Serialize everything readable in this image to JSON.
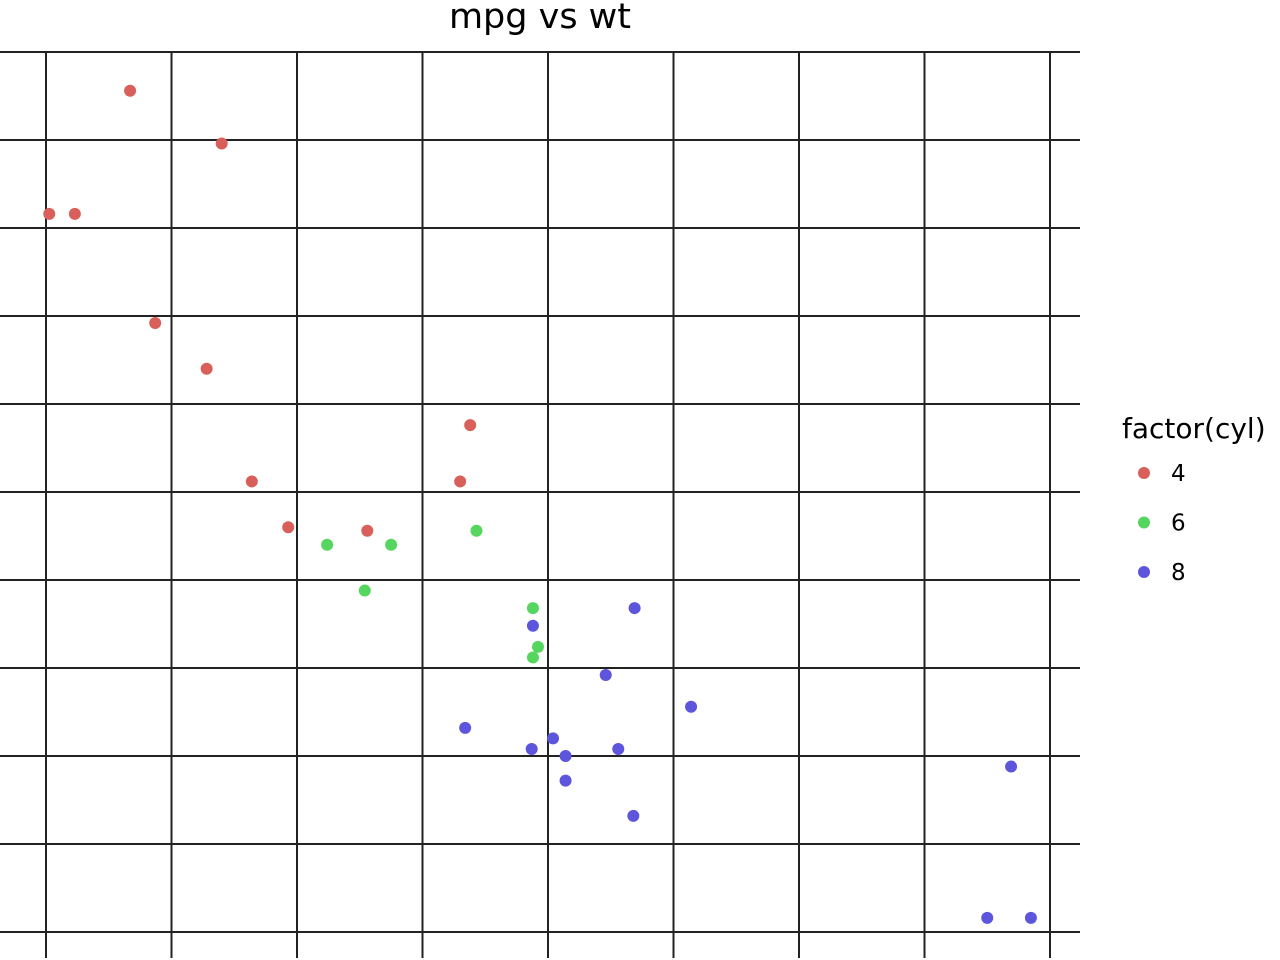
{
  "chart_data": {
    "type": "scatter",
    "title": "mpg vs wt",
    "xlabel": "",
    "ylabel": "",
    "xlim": [
      1.5,
      5.75
    ],
    "ylim": [
      9.5,
      35.0
    ],
    "x_gridlines": [
      1.5,
      2.0,
      2.5,
      3.0,
      3.5,
      4.0,
      4.5,
      5.0,
      5.5
    ],
    "y_gridlines": [
      10.0,
      12.5,
      15.0,
      17.5,
      20.0,
      22.5,
      25.0,
      27.5,
      30.0,
      32.5,
      35.0
    ],
    "grid": true,
    "legend": {
      "title": "factor(cyl)",
      "placement": "right",
      "entries": [
        {
          "label": "4",
          "color": "#d9605a"
        },
        {
          "label": "6",
          "color": "#55d65e"
        },
        {
          "label": "8",
          "color": "#5d55dc"
        }
      ]
    },
    "series": [
      {
        "name": "4",
        "color": "#d9605a",
        "points": [
          {
            "x": 2.32,
            "y": 22.8
          },
          {
            "x": 3.19,
            "y": 24.4
          },
          {
            "x": 3.15,
            "y": 22.8
          },
          {
            "x": 2.2,
            "y": 32.4
          },
          {
            "x": 1.615,
            "y": 30.4
          },
          {
            "x": 1.835,
            "y": 33.9
          },
          {
            "x": 2.465,
            "y": 21.5
          },
          {
            "x": 1.935,
            "y": 27.3
          },
          {
            "x": 2.14,
            "y": 26.0
          },
          {
            "x": 1.513,
            "y": 30.4
          },
          {
            "x": 2.78,
            "y": 21.4
          }
        ]
      },
      {
        "name": "6",
        "color": "#55d65e",
        "points": [
          {
            "x": 2.62,
            "y": 21.0
          },
          {
            "x": 2.875,
            "y": 21.0
          },
          {
            "x": 3.215,
            "y": 21.4
          },
          {
            "x": 3.46,
            "y": 18.1
          },
          {
            "x": 3.44,
            "y": 19.2
          },
          {
            "x": 3.44,
            "y": 17.8
          },
          {
            "x": 2.77,
            "y": 19.7
          }
        ]
      },
      {
        "name": "8",
        "color": "#5d55dc",
        "points": [
          {
            "x": 3.44,
            "y": 18.7
          },
          {
            "x": 3.57,
            "y": 14.3
          },
          {
            "x": 4.07,
            "y": 16.4
          },
          {
            "x": 3.73,
            "y": 17.3
          },
          {
            "x": 3.78,
            "y": 15.2
          },
          {
            "x": 5.25,
            "y": 10.4
          },
          {
            "x": 5.424,
            "y": 10.4
          },
          {
            "x": 5.345,
            "y": 14.7
          },
          {
            "x": 3.52,
            "y": 15.5
          },
          {
            "x": 3.435,
            "y": 15.2
          },
          {
            "x": 3.84,
            "y": 13.3
          },
          {
            "x": 3.845,
            "y": 19.2
          },
          {
            "x": 3.17,
            "y": 15.8
          },
          {
            "x": 3.57,
            "y": 15.0
          }
        ]
      }
    ]
  }
}
